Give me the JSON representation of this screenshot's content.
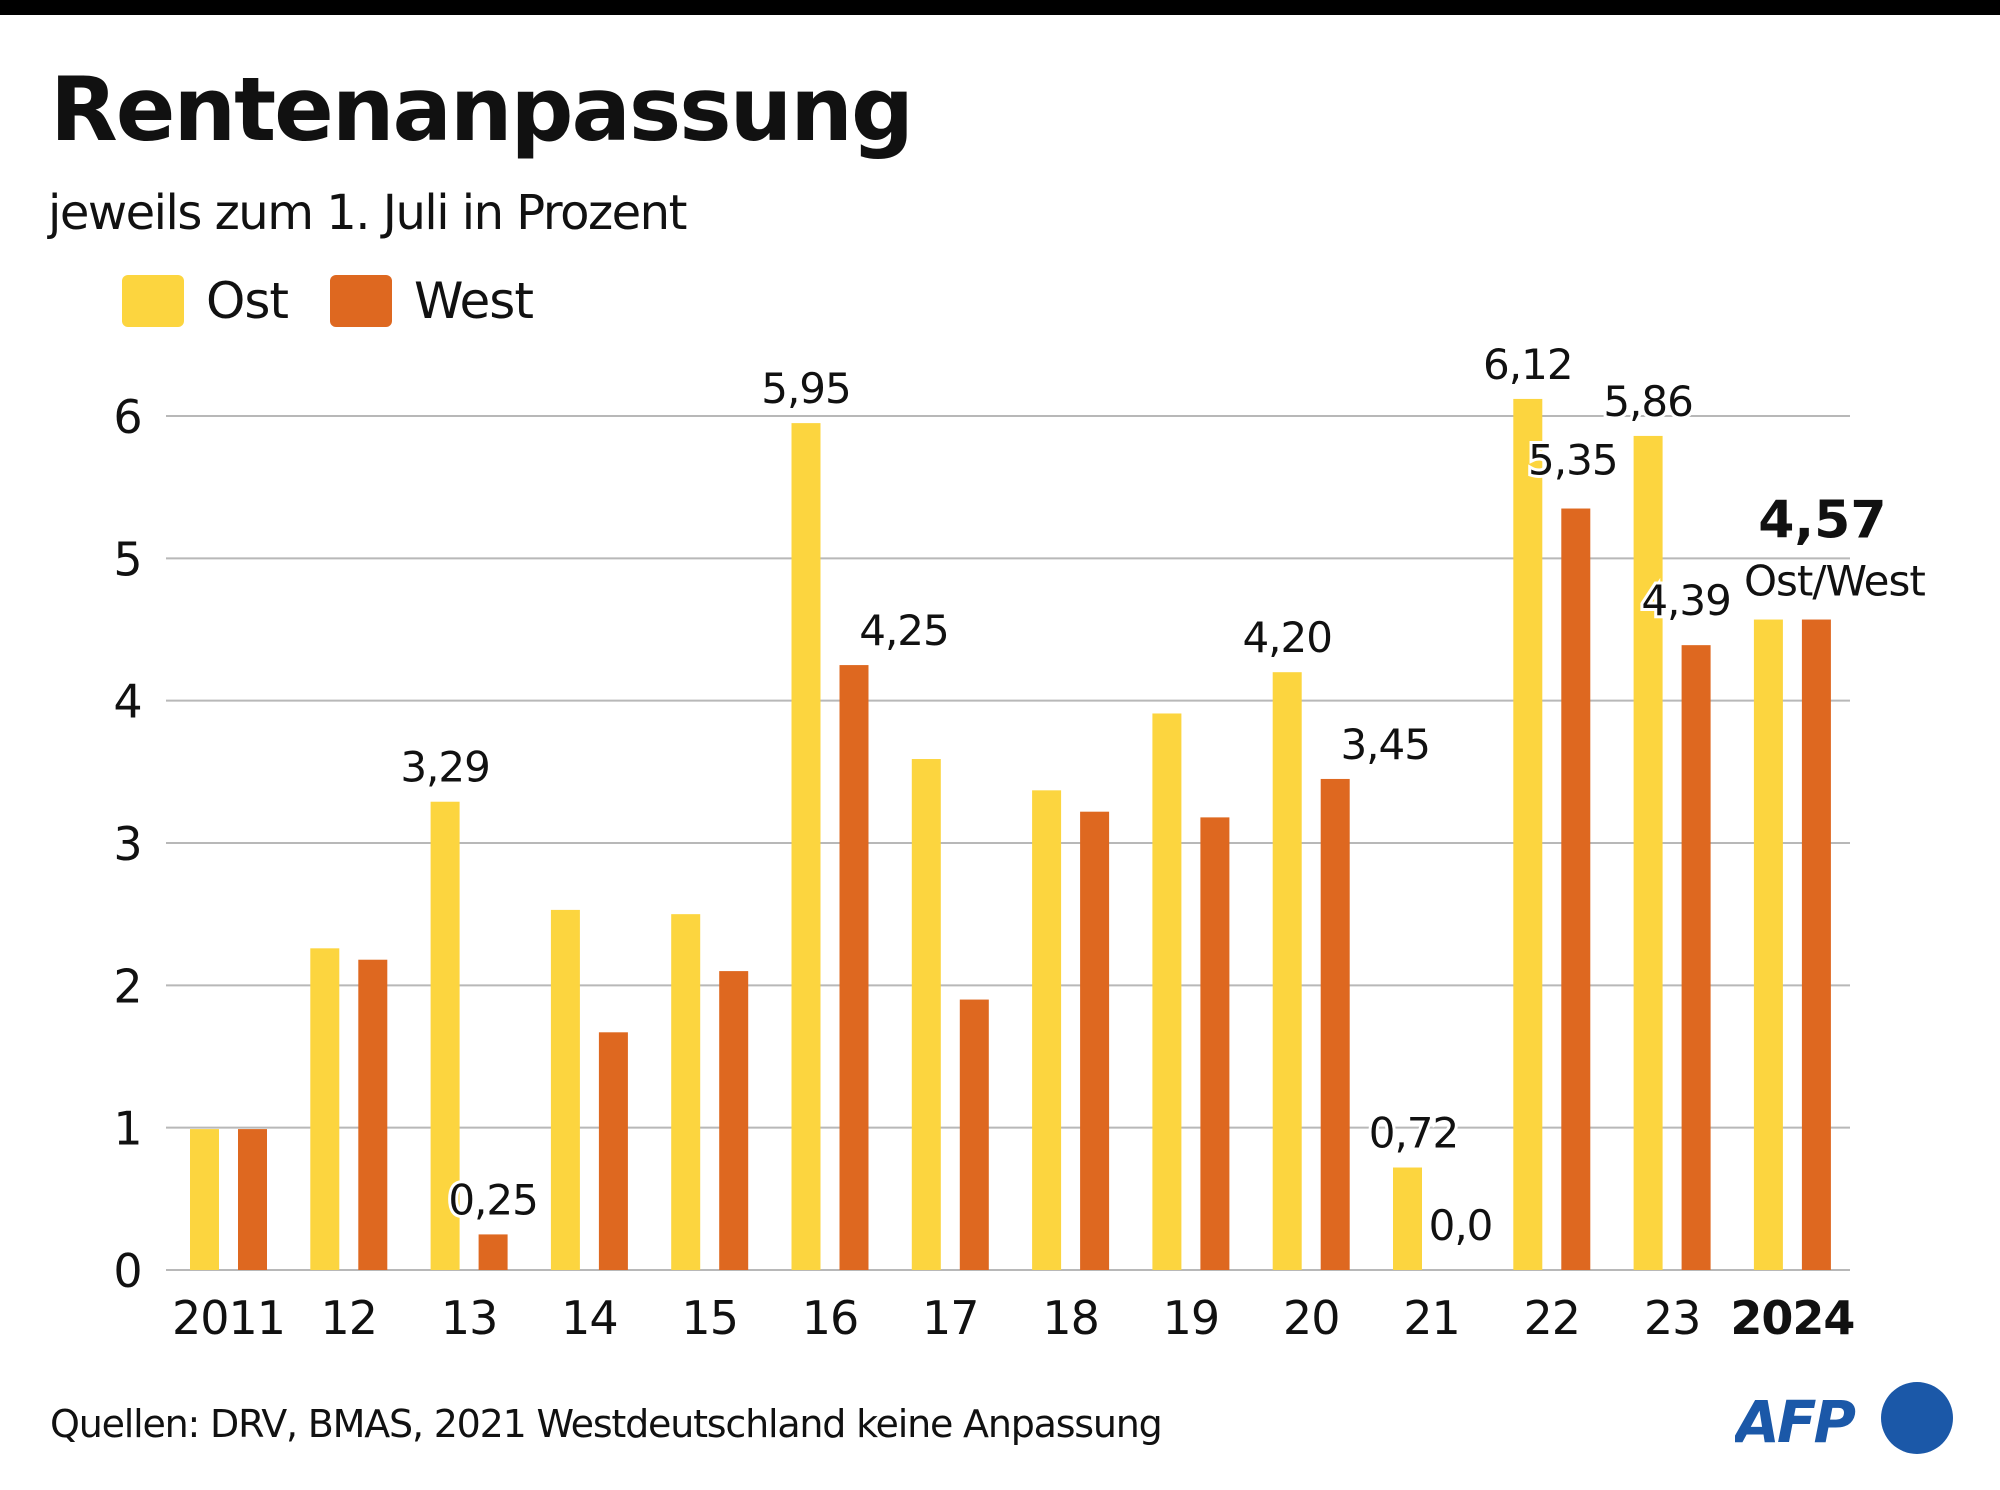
{
  "header": {
    "title": "Rentenanpassung",
    "subtitle": "jeweils zum 1. Juli in Prozent"
  },
  "legend": [
    {
      "label": "Ost",
      "color": "#FCD53F"
    },
    {
      "label": "West",
      "color": "#DE6820"
    }
  ],
  "footer": {
    "source": "Quellen: DRV, BMAS, 2021 Westdeutschland keine Anpassung",
    "logo_text": "AFP",
    "logo_color": "#1B58A8"
  },
  "chart_data": {
    "type": "bar",
    "title": "Rentenanpassung",
    "subtitle": "jeweils zum 1. Juli in Prozent",
    "xlabel": "",
    "ylabel": "",
    "ylim": [
      0,
      6
    ],
    "yticks": [
      0,
      1,
      2,
      3,
      4,
      5,
      6
    ],
    "grid": true,
    "legend_position": "top-left",
    "categories": [
      "2011",
      "12",
      "13",
      "14",
      "15",
      "16",
      "17",
      "18",
      "19",
      "20",
      "21",
      "22",
      "23",
      "2024"
    ],
    "series": [
      {
        "name": "Ost",
        "color": "#FCD53F",
        "values": [
          0.99,
          2.26,
          3.29,
          2.53,
          2.5,
          5.95,
          3.59,
          3.37,
          3.91,
          4.2,
          0.72,
          6.12,
          5.86,
          4.57
        ]
      },
      {
        "name": "West",
        "color": "#DE6820",
        "values": [
          0.99,
          2.18,
          0.25,
          1.67,
          2.1,
          4.25,
          1.9,
          3.22,
          3.18,
          3.45,
          0.0,
          5.35,
          4.39,
          4.57
        ]
      }
    ],
    "data_labels": [
      {
        "category": "13",
        "series": "Ost",
        "text": "3,29"
      },
      {
        "category": "13",
        "series": "West",
        "text": "0,25"
      },
      {
        "category": "16",
        "series": "Ost",
        "text": "5,95"
      },
      {
        "category": "16",
        "series": "West",
        "text": "4,25"
      },
      {
        "category": "20",
        "series": "Ost",
        "text": "4,20"
      },
      {
        "category": "20",
        "series": "West",
        "text": "3,45"
      },
      {
        "category": "21",
        "series": "Ost",
        "text": "0,72"
      },
      {
        "category": "21",
        "series": "West",
        "text": "0,0"
      },
      {
        "category": "22",
        "series": "Ost",
        "text": "6,12"
      },
      {
        "category": "22",
        "series": "West",
        "text": "5,35"
      },
      {
        "category": "23",
        "series": "Ost",
        "text": "5,86"
      },
      {
        "category": "23",
        "series": "West",
        "text": "4,39"
      },
      {
        "category": "2024",
        "series": "both",
        "text": "4,57",
        "subtext": "Ost/West",
        "bold": true
      }
    ],
    "bold_categories": [
      "2024"
    ]
  }
}
